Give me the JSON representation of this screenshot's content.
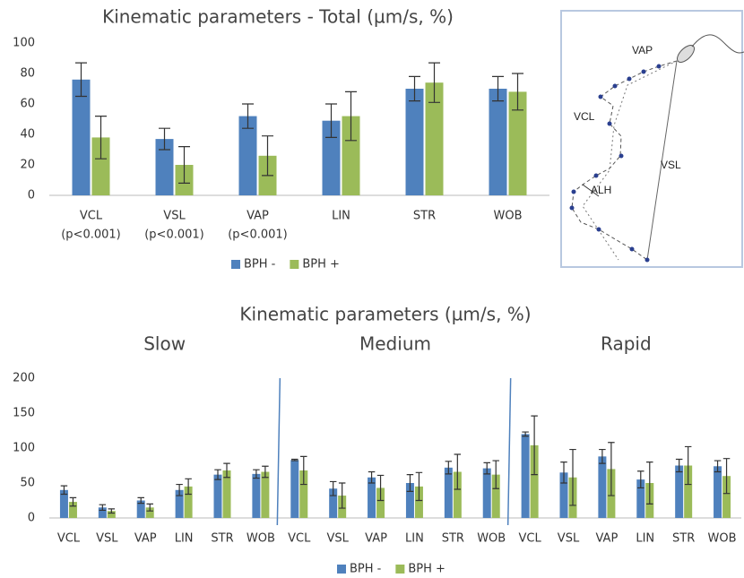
{
  "chart_data": [
    {
      "type": "bar",
      "title": "Kinematic parameters - Total (µm/s, %)",
      "categories": [
        "VCL",
        "VSL",
        "VAP",
        "LIN",
        "STR",
        "WOB"
      ],
      "category_notes": [
        "(p<0.001)",
        "(p<0.001)",
        "(p<0.001)",
        null,
        null,
        null
      ],
      "series": [
        {
          "name": "BPH -",
          "color": "#4f81bd",
          "values": [
            76,
            37,
            52,
            49,
            70,
            70
          ],
          "errors": [
            11,
            7,
            8,
            11,
            8,
            8
          ]
        },
        {
          "name": "BPH +",
          "color": "#9bbb59",
          "values": [
            38,
            20,
            26,
            52,
            74,
            68
          ],
          "errors": [
            14,
            12,
            13,
            16,
            13,
            12
          ]
        }
      ],
      "ylim": [
        0,
        100
      ],
      "yticks": [
        0,
        20,
        40,
        60,
        80,
        100
      ],
      "grid": false,
      "legend": "bottom"
    },
    {
      "type": "bar",
      "title": "Kinematic parameters (µm/s, %)",
      "groups": [
        "Slow",
        "Medium",
        "Rapid"
      ],
      "categories": [
        "VCL",
        "VSL",
        "VAP",
        "LIN",
        "STR",
        "WOB",
        "VCL",
        "VSL",
        "VAP",
        "LIN",
        "STR",
        "WOB",
        "VCL",
        "VSL",
        "VAP",
        "LIN",
        "STR",
        "WOB"
      ],
      "series": [
        {
          "name": "BPH -",
          "color": "#4f81bd",
          "values": [
            40,
            15,
            25,
            40,
            62,
            63,
            83,
            42,
            58,
            50,
            72,
            71,
            120,
            65,
            88,
            55,
            75,
            74
          ],
          "errors": [
            6,
            4,
            4,
            8,
            7,
            6,
            1,
            10,
            8,
            12,
            9,
            8,
            3,
            15,
            10,
            12,
            9,
            8
          ]
        },
        {
          "name": "BPH +",
          "color": "#9bbb59",
          "values": [
            23,
            10,
            15,
            45,
            68,
            66,
            68,
            32,
            43,
            45,
            66,
            62,
            104,
            58,
            70,
            50,
            75,
            60
          ],
          "errors": [
            6,
            3,
            5,
            11,
            10,
            8,
            20,
            18,
            18,
            20,
            25,
            20,
            42,
            40,
            38,
            30,
            27,
            25
          ]
        }
      ],
      "ylim": [
        0,
        200
      ],
      "yticks": [
        0,
        50,
        100,
        150,
        200
      ],
      "grid": false,
      "legend": "bottom"
    }
  ],
  "diagram": {
    "labels": [
      "VAP",
      "VCL",
      "VSL",
      "ALH"
    ]
  }
}
